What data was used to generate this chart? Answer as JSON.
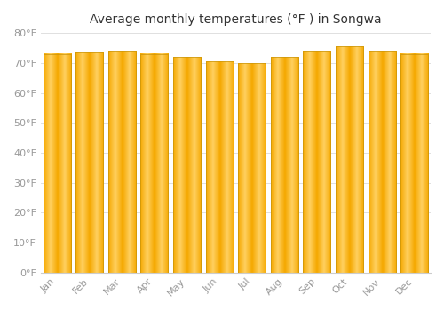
{
  "title": "Average monthly temperatures (°F ) in Songwa",
  "months": [
    "Jan",
    "Feb",
    "Mar",
    "Apr",
    "May",
    "Jun",
    "Jul",
    "Aug",
    "Sep",
    "Oct",
    "Nov",
    "Dec"
  ],
  "values": [
    73,
    73.5,
    74,
    73,
    72,
    70.5,
    70,
    72,
    74,
    75.5,
    74,
    73
  ],
  "ylim": [
    0,
    80
  ],
  "yticks": [
    0,
    10,
    20,
    30,
    40,
    50,
    60,
    70,
    80
  ],
  "ytick_labels": [
    "0°F",
    "10°F",
    "20°F",
    "30°F",
    "40°F",
    "50°F",
    "60°F",
    "70°F",
    "80°F"
  ],
  "bar_color_center": "#FFD060",
  "bar_color_edge": "#F5A800",
  "bar_edge_color": "#C8940A",
  "background_color": "#FFFFFF",
  "grid_color": "#E0E0E0",
  "title_fontsize": 10,
  "tick_fontsize": 8,
  "tick_color": "#999999",
  "title_color": "#333333",
  "bar_width": 0.85
}
